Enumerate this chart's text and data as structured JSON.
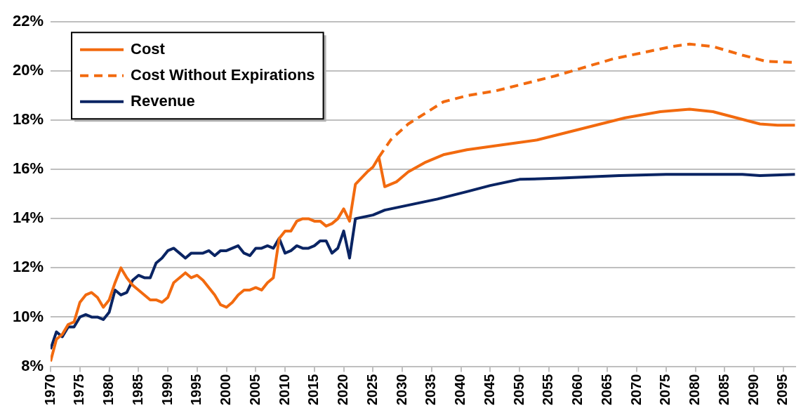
{
  "chart_data": {
    "type": "line",
    "xlim": [
      1970,
      2097
    ],
    "xticks": [
      1970,
      1975,
      1980,
      1985,
      1990,
      1995,
      2000,
      2005,
      2010,
      2015,
      2020,
      2025,
      2030,
      2035,
      2040,
      2045,
      2050,
      2055,
      2060,
      2065,
      2070,
      2075,
      2080,
      2085,
      2090,
      2095
    ],
    "ylim": [
      8,
      22
    ],
    "yticks": [
      {
        "value": 8,
        "label": "8%"
      },
      {
        "value": 10,
        "label": "10%"
      },
      {
        "value": 12,
        "label": "12%"
      },
      {
        "value": 14,
        "label": "14%"
      },
      {
        "value": 16,
        "label": "16%"
      },
      {
        "value": 18,
        "label": "18%"
      },
      {
        "value": 20,
        "label": "20%"
      },
      {
        "value": 22,
        "label": "22%"
      }
    ],
    "grid": "y",
    "legend": "top left",
    "marker": "none",
    "series": [
      {
        "name": "Cost",
        "color": "#f26a0f",
        "line_style": "solid",
        "x": [
          1970,
          1971,
          1972,
          1973,
          1974,
          1975,
          1976,
          1977,
          1978,
          1979,
          1980,
          1981,
          1982,
          1983,
          1984,
          1985,
          1986,
          1987,
          1988,
          1989,
          1990,
          1991,
          1992,
          1993,
          1994,
          1995,
          1996,
          1997,
          1998,
          1999,
          2000,
          2001,
          2002,
          2003,
          2004,
          2005,
          2006,
          2007,
          2008,
          2009,
          2010,
          2011,
          2012,
          2013,
          2014,
          2015,
          2016,
          2017,
          2018,
          2019,
          2020,
          2021,
          2022,
          2024,
          2025,
          2026,
          2027,
          2029,
          2031,
          2034,
          2037,
          2041,
          2047,
          2053,
          2058,
          2063,
          2068,
          2074,
          2079,
          2083,
          2087,
          2091,
          2094,
          2097
        ],
        "values": [
          8.2,
          9.1,
          9.3,
          9.7,
          9.8,
          10.6,
          10.9,
          11.0,
          10.8,
          10.4,
          10.7,
          11.4,
          12.0,
          11.6,
          11.3,
          11.1,
          10.9,
          10.7,
          10.7,
          10.6,
          10.8,
          11.4,
          11.6,
          11.8,
          11.6,
          11.7,
          11.5,
          11.2,
          10.9,
          10.5,
          10.4,
          10.6,
          10.9,
          11.1,
          11.1,
          11.2,
          11.1,
          11.4,
          11.6,
          13.2,
          13.5,
          13.5,
          13.9,
          14.0,
          14.0,
          13.9,
          13.9,
          13.7,
          13.8,
          14.0,
          14.4,
          13.9,
          15.4,
          15.9,
          16.1,
          16.5,
          15.3,
          15.5,
          15.9,
          16.3,
          16.6,
          16.8,
          17.0,
          17.2,
          17.5,
          17.8,
          18.1,
          18.35,
          18.45,
          18.35,
          18.1,
          17.85,
          17.8,
          17.8
        ]
      },
      {
        "name": "Cost Without Expirations",
        "color": "#f26a0f",
        "line_style": "dashed",
        "x": [
          2026,
          2028,
          2031,
          2034,
          2037,
          2041,
          2046,
          2051,
          2056,
          2061,
          2066,
          2072,
          2076,
          2079,
          2083,
          2088,
          2092,
          2097
        ],
        "values": [
          16.5,
          17.2,
          17.85,
          18.3,
          18.75,
          19.0,
          19.2,
          19.5,
          19.8,
          20.15,
          20.5,
          20.8,
          21.0,
          21.1,
          21.0,
          20.65,
          20.4,
          20.35
        ]
      },
      {
        "name": "Revenue",
        "color": "#0a2463",
        "line_style": "solid",
        "x": [
          1970,
          1971,
          1972,
          1973,
          1974,
          1975,
          1976,
          1977,
          1978,
          1979,
          1980,
          1981,
          1982,
          1983,
          1984,
          1985,
          1986,
          1987,
          1988,
          1989,
          1990,
          1991,
          1992,
          1993,
          1994,
          1995,
          1996,
          1997,
          1998,
          1999,
          2000,
          2001,
          2002,
          2003,
          2004,
          2005,
          2006,
          2007,
          2008,
          2009,
          2010,
          2011,
          2012,
          2013,
          2014,
          2015,
          2016,
          2017,
          2018,
          2019,
          2020,
          2021,
          2022,
          2025,
          2027,
          2031,
          2036,
          2041,
          2045,
          2050,
          2057,
          2067,
          2075,
          2088,
          2091,
          2097
        ],
        "values": [
          8.7,
          9.4,
          9.2,
          9.6,
          9.6,
          10.0,
          10.1,
          10.0,
          10.0,
          9.9,
          10.2,
          11.1,
          10.9,
          11.0,
          11.5,
          11.7,
          11.6,
          11.6,
          12.2,
          12.4,
          12.7,
          12.8,
          12.6,
          12.4,
          12.6,
          12.6,
          12.6,
          12.7,
          12.5,
          12.7,
          12.7,
          12.8,
          12.9,
          12.6,
          12.5,
          12.8,
          12.8,
          12.9,
          12.8,
          13.2,
          12.6,
          12.7,
          12.9,
          12.8,
          12.8,
          12.9,
          13.1,
          13.1,
          12.6,
          12.8,
          13.5,
          12.4,
          14.0,
          14.15,
          14.35,
          14.55,
          14.8,
          15.1,
          15.35,
          15.6,
          15.65,
          15.75,
          15.8,
          15.8,
          15.75,
          15.8
        ]
      }
    ]
  }
}
